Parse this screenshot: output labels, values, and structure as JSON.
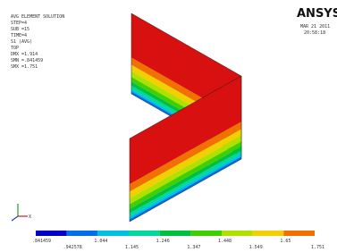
{
  "info": {
    "lines": [
      "AVG ELEMENT SOLUTION",
      "STEP=4",
      "SUB =15",
      "TIME=4",
      "S1      (AVG)",
      "TOP",
      "DMX =1.914",
      "SMN =.841459",
      "SMX =1.751"
    ]
  },
  "logo": "ANSYS",
  "date": "MAR 21 2011",
  "time": "20:58:18",
  "legend": {
    "labels": [
      ".841459",
      ".942578",
      "1.044",
      "1.145",
      "1.246",
      "1.347",
      "1.448",
      "1.549",
      "1.65",
      "1.751"
    ]
  }
}
